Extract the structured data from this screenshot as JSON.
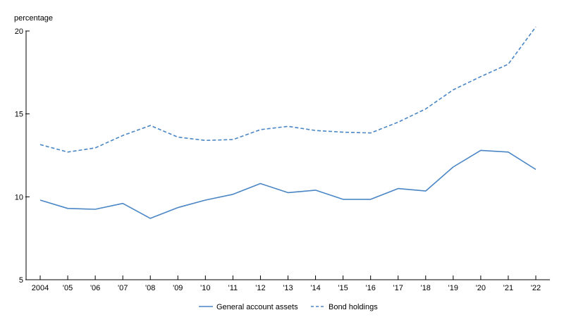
{
  "chart_data": {
    "type": "line",
    "y_unit_label": "percentage",
    "categories": [
      "2004",
      "'05",
      "'06",
      "'07",
      "'08",
      "'09",
      "'10",
      "'11",
      "'12",
      "'13",
      "'14",
      "'15",
      "'16",
      "'17",
      "'18",
      "'19",
      "'20",
      "'21",
      "'22"
    ],
    "ylim": [
      5,
      20
    ],
    "yticks": [
      5,
      10,
      15,
      20
    ],
    "grid": false,
    "legend_position": "bottom-center",
    "series": [
      {
        "name": "General account assets",
        "style": "solid",
        "color": "#4a86c5",
        "values": [
          9.8,
          9.3,
          9.25,
          9.6,
          8.7,
          9.35,
          9.8,
          10.15,
          10.8,
          10.25,
          10.4,
          9.85,
          9.85,
          10.5,
          10.35,
          11.8,
          12.8,
          12.7,
          11.65
        ]
      },
      {
        "name": "Bond holdings",
        "style": "dashed",
        "color": "#4a86c5",
        "values": [
          13.15,
          12.7,
          12.95,
          13.7,
          14.3,
          13.6,
          13.4,
          13.45,
          14.05,
          14.25,
          14.0,
          13.9,
          13.85,
          14.5,
          15.3,
          16.45,
          17.25,
          18.0,
          20.25
        ]
      }
    ]
  }
}
